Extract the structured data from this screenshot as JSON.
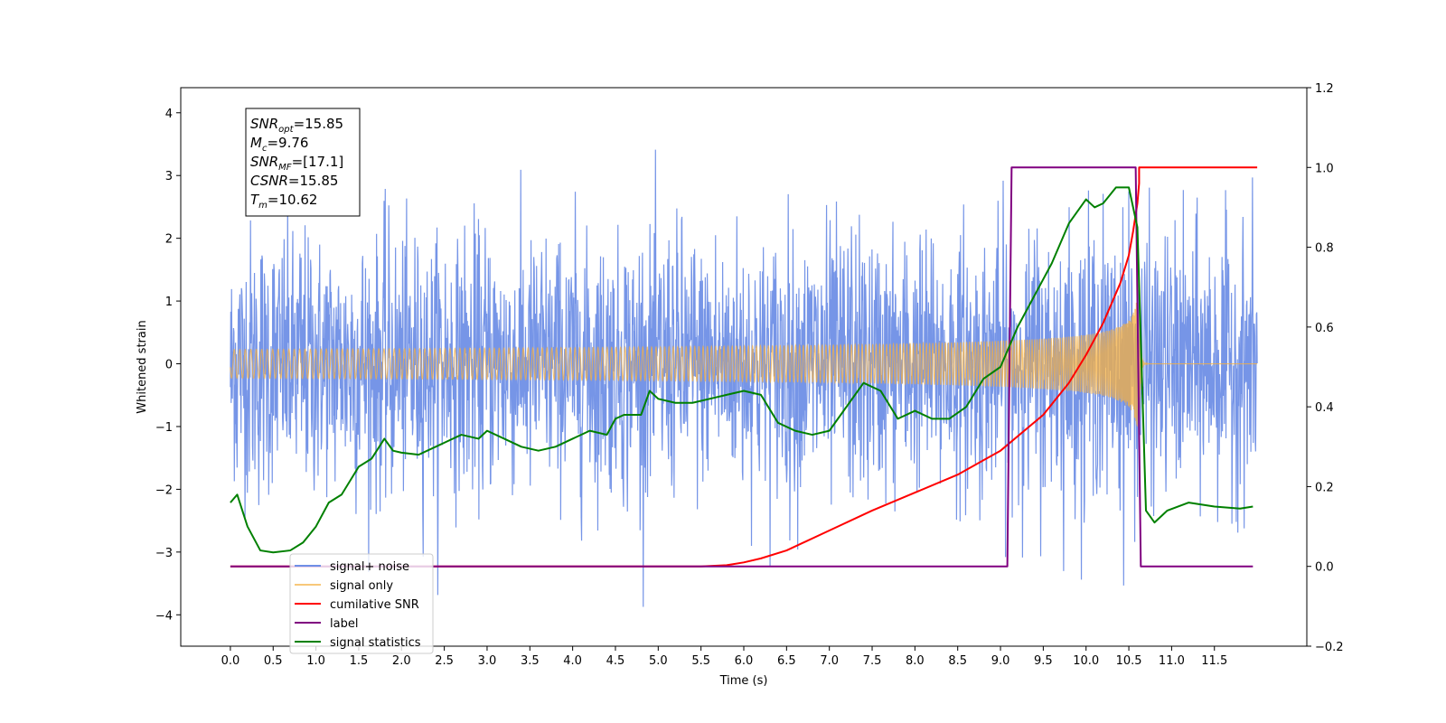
{
  "chart_data": {
    "type": "line",
    "title": "",
    "xlabel": "Time (s)",
    "ylabel": "Whitened strain",
    "y2label": "",
    "xlim": [
      -0.58,
      12.58
    ],
    "ylim": [
      -4.5,
      4.4
    ],
    "y2lim": [
      -0.2,
      1.2
    ],
    "xticks": [
      "0.0",
      "0.5",
      "1.0",
      "1.5",
      "2.0",
      "2.5",
      "3.0",
      "3.5",
      "4.0",
      "4.5",
      "5.0",
      "5.5",
      "6.0",
      "6.5",
      "7.0",
      "7.5",
      "8.0",
      "8.5",
      "9.0",
      "9.5",
      "10.0",
      "10.5",
      "11.0",
      "11.5"
    ],
    "yticks": [
      "4",
      "3",
      "2",
      "1",
      "0",
      "−1",
      "−2",
      "−3",
      "−4"
    ],
    "y2ticks": [
      "1.2",
      "1.0",
      "0.8",
      "0.6",
      "0.4",
      "0.2",
      "0.0",
      "−0.2"
    ],
    "grid": false,
    "legend_position": "lower-left",
    "annotation": {
      "lines": [
        {
          "main": "SNR",
          "sub": "opt",
          "value": "=15.85"
        },
        {
          "main": "M",
          "sub": "c",
          "value": "=9.76"
        },
        {
          "main": "SNR",
          "sub": "MF",
          "value": "=[17.1]"
        },
        {
          "main": "CSNR",
          "sub": "",
          "value": "=15.85"
        },
        {
          "main": "T",
          "sub": "m",
          "value": "=10.62"
        }
      ]
    },
    "series": [
      {
        "name": "signal+ noise",
        "axis": "left",
        "color": "#6f8fe6",
        "style": "noise",
        "noise_sigma": 1.0,
        "x_range": [
          0.0,
          12.0
        ]
      },
      {
        "name": "signal only",
        "axis": "left",
        "color": "#f5b041",
        "style": "chirp",
        "t_merge": 10.62,
        "amplitude_at_merge": 1.1,
        "x_range": [
          0.0,
          12.0
        ]
      },
      {
        "name": "cumilative SNR",
        "axis": "right",
        "color": "#ff0000",
        "x": [
          0.0,
          5.5,
          5.8,
          6.0,
          6.2,
          6.5,
          7.0,
          7.5,
          8.0,
          8.5,
          9.0,
          9.5,
          9.8,
          10.0,
          10.2,
          10.4,
          10.5,
          10.55,
          10.6,
          10.62,
          10.62,
          12.0
        ],
        "values": [
          0.0,
          0.0,
          0.003,
          0.01,
          0.02,
          0.04,
          0.09,
          0.14,
          0.185,
          0.23,
          0.29,
          0.38,
          0.46,
          0.53,
          0.61,
          0.71,
          0.78,
          0.84,
          0.91,
          0.96,
          1.0,
          1.0
        ]
      },
      {
        "name": "label",
        "axis": "right",
        "color": "#800080",
        "x": [
          0.0,
          9.08,
          9.13,
          10.58,
          10.64,
          11.95
        ],
        "values": [
          0.0,
          0.0,
          1.0,
          1.0,
          0.0,
          0.0
        ]
      },
      {
        "name": "signal statistics",
        "axis": "right",
        "color": "#008000",
        "x": [
          0.0,
          0.08,
          0.2,
          0.35,
          0.5,
          0.7,
          0.85,
          1.0,
          1.15,
          1.3,
          1.5,
          1.65,
          1.8,
          1.9,
          2.0,
          2.2,
          2.4,
          2.5,
          2.7,
          2.9,
          3.0,
          3.2,
          3.4,
          3.6,
          3.8,
          4.0,
          4.2,
          4.4,
          4.5,
          4.6,
          4.8,
          4.9,
          5.0,
          5.2,
          5.4,
          5.6,
          5.8,
          6.0,
          6.2,
          6.4,
          6.6,
          6.8,
          7.0,
          7.2,
          7.4,
          7.6,
          7.8,
          8.0,
          8.2,
          8.4,
          8.6,
          8.8,
          9.0,
          9.2,
          9.4,
          9.6,
          9.8,
          10.0,
          10.1,
          10.2,
          10.35,
          10.5,
          10.6,
          10.7,
          10.8,
          10.95,
          11.2,
          11.5,
          11.8,
          11.95
        ],
        "values": [
          0.16,
          0.18,
          0.1,
          0.04,
          0.035,
          0.04,
          0.06,
          0.1,
          0.16,
          0.18,
          0.25,
          0.27,
          0.32,
          0.29,
          0.285,
          0.28,
          0.3,
          0.31,
          0.33,
          0.32,
          0.34,
          0.32,
          0.3,
          0.29,
          0.3,
          0.32,
          0.34,
          0.33,
          0.37,
          0.38,
          0.38,
          0.44,
          0.42,
          0.41,
          0.41,
          0.42,
          0.43,
          0.44,
          0.43,
          0.36,
          0.34,
          0.33,
          0.34,
          0.4,
          0.46,
          0.44,
          0.37,
          0.39,
          0.37,
          0.37,
          0.4,
          0.47,
          0.5,
          0.6,
          0.68,
          0.76,
          0.86,
          0.92,
          0.9,
          0.91,
          0.95,
          0.95,
          0.85,
          0.14,
          0.11,
          0.14,
          0.16,
          0.15,
          0.145,
          0.15
        ]
      }
    ]
  }
}
